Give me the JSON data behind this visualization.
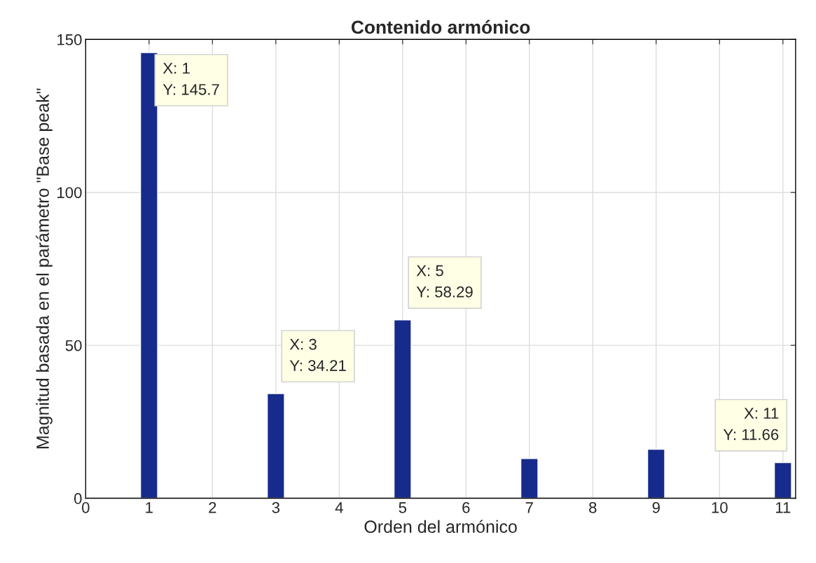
{
  "chart_data": {
    "type": "bar",
    "title": "Contenido armónico",
    "xlabel": "Orden del armónico",
    "ylabel": "Magnitud basada en el parámetro \"Base peak\"",
    "x": [
      1,
      3,
      5,
      7,
      9,
      11
    ],
    "values": [
      145.7,
      34.21,
      58.29,
      13,
      16,
      11.66
    ],
    "color": "#172b8c",
    "xlim": [
      0,
      11.2
    ],
    "xticks": [
      0,
      1,
      2,
      3,
      4,
      5,
      6,
      7,
      8,
      9,
      10,
      11
    ],
    "ylim": [
      0,
      150
    ],
    "yticks": [
      0,
      50,
      100,
      150
    ],
    "grid": true,
    "annotations": [
      {
        "text": "X: 1\nY: 145.7",
        "x": 1,
        "y": 145.7
      },
      {
        "text": "X: 3\nY: 34.21",
        "x": 3,
        "y": 34.21
      },
      {
        "text": "X: 5\nY: 58.29",
        "x": 5,
        "y": 58.29
      },
      {
        "text": "X: 11\nY: 11.66",
        "x": 11,
        "y": 11.66
      }
    ]
  }
}
